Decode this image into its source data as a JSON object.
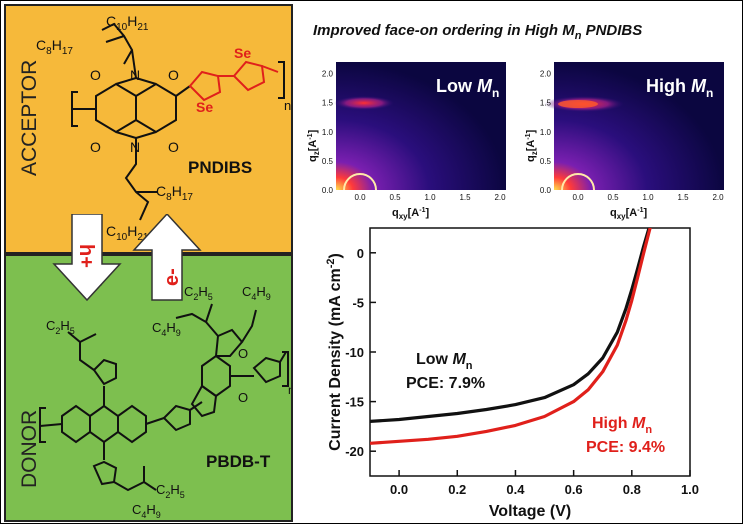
{
  "headline": {
    "text_before": "Improved face-on ordering in High ",
    "M": "M",
    "sub": "n",
    "text_after": " PNDIBS"
  },
  "acceptor": {
    "label": "ACCEPTOR",
    "name": "PNDIBS",
    "substituents": {
      "top_a": "C",
      "top_a_sub": "10",
      "top_a_h": "H",
      "top_a_hsub": "21",
      "top_b": "C",
      "top_b_sub": "8",
      "top_b_h": "H",
      "top_b_hsub": "17",
      "bot_a": "C",
      "bot_a_sub": "8",
      "bot_a_h": "H",
      "bot_a_hsub": "17",
      "bot_b": "C",
      "bot_b_sub": "10",
      "bot_b_h": "H",
      "bot_b_hsub": "21"
    },
    "atoms": {
      "N": "N",
      "O": "O",
      "Se": "Se",
      "n": "n"
    }
  },
  "donor": {
    "label": "DONOR",
    "name": "PBDB-T",
    "atoms": {
      "S": "S",
      "O": "O",
      "n": "n"
    },
    "alkyl": {
      "c4": "C",
      "c4sub": "4",
      "h9": "H",
      "h9sub": "9",
      "c2": "C",
      "c2sub": "2",
      "h5": "H",
      "h5sub": "5"
    }
  },
  "arrows": {
    "hole": "h+",
    "electron": "e-"
  },
  "giwaxs": [
    {
      "label_main": "Low ",
      "label_M": "M",
      "label_sub": "n"
    },
    {
      "label_main": "High ",
      "label_M": "M",
      "label_sub": "n"
    }
  ],
  "giwaxs_axes": {
    "y_ticks": [
      "0.0",
      "0.5",
      "1.0",
      "1.5",
      "2.0"
    ],
    "x_ticks": [
      "0.0",
      "0.5",
      "1.0",
      "1.5",
      "2.0"
    ],
    "ylabel": "q",
    "ylabel_sub": "z",
    "ylabel_unit": "[A",
    "ylabel_unit_sup": "-1",
    "ylabel_unit_end": "]",
    "xlabel": "q",
    "xlabel_sub": "xy",
    "xlabel_unit": "[A",
    "xlabel_unit_sup": "-1",
    "xlabel_unit_end": "]"
  },
  "chart_data": {
    "type": "line",
    "xlabel": "Voltage (V)",
    "ylabel": "Current Density (mA cm",
    "ylabel_sup": "-2",
    "ylabel_end": ")",
    "xlim": [
      -0.1,
      1.0
    ],
    "ylim": [
      -22.5,
      2.5
    ],
    "x_ticks": [
      0.0,
      0.2,
      0.4,
      0.6,
      0.8,
      1.0
    ],
    "x_tick_labels": [
      "0.0",
      "0.2",
      "0.4",
      "0.6",
      "0.8",
      "1.0"
    ],
    "y_ticks": [
      0,
      -5,
      -10,
      -15,
      -20
    ],
    "y_tick_labels": [
      "0",
      "-5",
      "-10",
      "-15",
      "-20"
    ],
    "series": [
      {
        "name": "Low Mn",
        "color": "#111111",
        "x": [
          -0.1,
          0.0,
          0.1,
          0.2,
          0.3,
          0.4,
          0.5,
          0.6,
          0.65,
          0.7,
          0.75,
          0.78,
          0.8,
          0.82,
          0.84,
          0.86,
          0.87
        ],
        "y": [
          -17.0,
          -16.8,
          -16.5,
          -16.2,
          -15.8,
          -15.3,
          -14.6,
          -13.3,
          -12.2,
          -10.6,
          -8.0,
          -5.6,
          -3.7,
          -1.6,
          0.6,
          2.6,
          3.5
        ]
      },
      {
        "name": "High Mn",
        "color": "#e0201b",
        "x": [
          -0.1,
          0.0,
          0.1,
          0.2,
          0.3,
          0.4,
          0.5,
          0.6,
          0.65,
          0.7,
          0.75,
          0.78,
          0.8,
          0.82,
          0.84,
          0.86,
          0.87
        ],
        "y": [
          -19.2,
          -19.0,
          -18.8,
          -18.5,
          -18.0,
          -17.4,
          -16.5,
          -15.0,
          -13.8,
          -12.0,
          -9.3,
          -6.8,
          -4.8,
          -2.5,
          -0.1,
          2.2,
          3.3
        ]
      }
    ],
    "annotations": [
      {
        "series": "Low Mn",
        "label_a": "Low ",
        "label_M": "M",
        "label_sub": "n",
        "pce": "PCE: 7.9%"
      },
      {
        "series": "High Mn",
        "label_a": "High ",
        "label_M": "M",
        "label_sub": "n",
        "pce": "PCE: 9.4%"
      }
    ]
  },
  "colors": {
    "acceptor_bg": "#f6b93a",
    "donor_bg": "#7dbf4f",
    "low_mn": "#111111",
    "high_mn": "#e0201b",
    "selenophene": "#e0201b"
  }
}
